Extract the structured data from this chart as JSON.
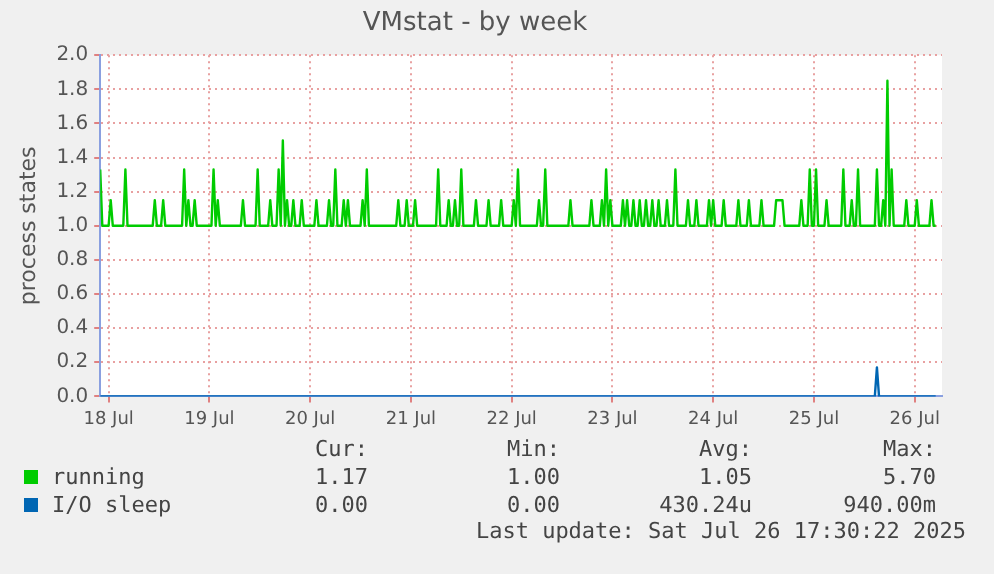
{
  "chart_data": {
    "type": "line",
    "title": "VMstat - by week",
    "ylabel": "process states",
    "xlim": [
      "2025-07-17T22:00",
      "2025-07-26T06:30"
    ],
    "xticks": [
      {
        "value": "2025-07-18",
        "label": "18 Jul"
      },
      {
        "value": "2025-07-19",
        "label": "19 Jul"
      },
      {
        "value": "2025-07-20",
        "label": "20 Jul"
      },
      {
        "value": "2025-07-21",
        "label": "21 Jul"
      },
      {
        "value": "2025-07-22",
        "label": "22 Jul"
      },
      {
        "value": "2025-07-23",
        "label": "23 Jul"
      },
      {
        "value": "2025-07-24",
        "label": "24 Jul"
      },
      {
        "value": "2025-07-25",
        "label": "25 Jul"
      },
      {
        "value": "2025-07-26",
        "label": "26 Jul"
      }
    ],
    "ylim": [
      0,
      2
    ],
    "yticks": [
      {
        "value": 0,
        "label": "0.0"
      },
      {
        "value": 0.2,
        "label": "0.2"
      },
      {
        "value": 0.4,
        "label": "0.4"
      },
      {
        "value": 0.6,
        "label": "0.6"
      },
      {
        "value": 0.8,
        "label": "0.8"
      },
      {
        "value": 1,
        "label": "1.0"
      },
      {
        "value": 1.2,
        "label": "1.2"
      },
      {
        "value": 1.4,
        "label": "1.4"
      },
      {
        "value": 1.6,
        "label": "1.6"
      },
      {
        "value": 1.8,
        "label": "1.8"
      },
      {
        "value": 2,
        "label": "2.0"
      }
    ],
    "grid": true,
    "legend": "bottom",
    "marker": "none",
    "line_style": "solid",
    "series": [
      {
        "name": "running",
        "color": "#00cc00",
        "x": [
          "2025-07-17T22:00",
          "2025-07-17T22:30",
          "2025-07-18T00:00",
          "2025-07-18T00:30",
          "2025-07-18T01:00",
          "2025-07-18T03:30",
          "2025-07-18T04:00",
          "2025-07-18T04:30",
          "2025-07-18T10:30",
          "2025-07-18T11:00",
          "2025-07-18T11:30",
          "2025-07-18T12:30",
          "2025-07-18T13:00",
          "2025-07-18T13:30",
          "2025-07-18T17:30",
          "2025-07-18T18:00",
          "2025-07-18T18:30",
          "2025-07-18T19:00",
          "2025-07-18T19:30",
          "2025-07-18T20:00",
          "2025-07-18T20:30",
          "2025-07-18T21:00",
          "2025-07-19T00:30",
          "2025-07-19T01:00",
          "2025-07-19T01:30",
          "2025-07-19T02:00",
          "2025-07-19T02:30",
          "2025-07-19T07:30",
          "2025-07-19T08:00",
          "2025-07-19T08:30",
          "2025-07-19T11:00",
          "2025-07-19T11:30",
          "2025-07-19T12:00",
          "2025-07-19T14:00",
          "2025-07-19T14:30",
          "2025-07-19T15:00",
          "2025-07-19T16:00",
          "2025-07-19T16:30",
          "2025-07-19T17:00",
          "2025-07-19T17:30",
          "2025-07-19T18:00",
          "2025-07-19T18:30",
          "2025-07-19T19:00",
          "2025-07-19T19:30",
          "2025-07-19T20:00",
          "2025-07-19T20:30",
          "2025-07-19T21:30",
          "2025-07-19T22:00",
          "2025-07-19T22:30",
          "2025-07-20T01:00",
          "2025-07-20T01:30",
          "2025-07-20T02:00",
          "2025-07-20T04:00",
          "2025-07-20T04:30",
          "2025-07-20T05:00",
          "2025-07-20T05:30",
          "2025-07-20T06:00",
          "2025-07-20T06:30",
          "2025-07-20T07:30",
          "2025-07-20T08:00",
          "2025-07-20T08:30",
          "2025-07-20T09:00",
          "2025-07-20T09:30",
          "2025-07-20T12:00",
          "2025-07-20T12:30",
          "2025-07-20T13:00",
          "2025-07-20T13:30",
          "2025-07-20T14:00",
          "2025-07-20T20:30",
          "2025-07-20T21:00",
          "2025-07-20T21:30",
          "2025-07-20T22:30",
          "2025-07-20T23:00",
          "2025-07-20T23:30",
          "2025-07-21T00:30",
          "2025-07-21T01:00",
          "2025-07-21T01:30",
          "2025-07-21T06:00",
          "2025-07-21T06:30",
          "2025-07-21T07:00",
          "2025-07-21T08:30",
          "2025-07-21T09:00",
          "2025-07-21T09:30",
          "2025-07-21T10:00",
          "2025-07-21T10:30",
          "2025-07-21T11:00",
          "2025-07-21T11:30",
          "2025-07-21T12:00",
          "2025-07-21T12:30",
          "2025-07-21T15:00",
          "2025-07-21T15:30",
          "2025-07-21T16:00",
          "2025-07-21T18:00",
          "2025-07-21T18:30",
          "2025-07-21T19:00",
          "2025-07-21T21:00",
          "2025-07-21T21:30",
          "2025-07-21T22:00",
          "2025-07-22T00:00",
          "2025-07-22T00:30",
          "2025-07-22T01:00",
          "2025-07-22T01:30",
          "2025-07-22T02:00",
          "2025-07-22T06:00",
          "2025-07-22T06:30",
          "2025-07-22T07:00",
          "2025-07-22T07:30",
          "2025-07-22T08:00",
          "2025-07-22T08:30",
          "2025-07-22T13:30",
          "2025-07-22T14:00",
          "2025-07-22T14:30",
          "2025-07-22T18:30",
          "2025-07-22T19:00",
          "2025-07-22T19:30",
          "2025-07-22T21:00",
          "2025-07-22T21:30",
          "2025-07-22T22:00",
          "2025-07-22T22:30",
          "2025-07-22T23:00",
          "2025-07-22T23:30",
          "2025-07-23T00:00",
          "2025-07-23T02:00",
          "2025-07-23T02:30",
          "2025-07-23T03:00",
          "2025-07-23T03:30",
          "2025-07-23T04:00",
          "2025-07-23T04:30",
          "2025-07-23T05:00",
          "2025-07-23T05:30",
          "2025-07-23T06:00",
          "2025-07-23T06:30",
          "2025-07-23T07:00",
          "2025-07-23T07:30",
          "2025-07-23T08:00",
          "2025-07-23T08:30",
          "2025-07-23T09:00",
          "2025-07-23T09:30",
          "2025-07-23T10:00",
          "2025-07-23T10:30",
          "2025-07-23T11:00",
          "2025-07-23T11:30",
          "2025-07-23T12:30",
          "2025-07-23T13:00",
          "2025-07-23T13:30",
          "2025-07-23T14:30",
          "2025-07-23T15:00",
          "2025-07-23T15:30",
          "2025-07-23T17:30",
          "2025-07-23T18:00",
          "2025-07-23T18:30",
          "2025-07-23T19:30",
          "2025-07-23T20:00",
          "2025-07-23T20:30",
          "2025-07-23T22:30",
          "2025-07-23T23:00",
          "2025-07-23T23:30",
          "2025-07-24T00:00",
          "2025-07-24T00:30",
          "2025-07-24T02:00",
          "2025-07-24T02:30",
          "2025-07-24T03:00",
          "2025-07-24T05:30",
          "2025-07-24T06:00",
          "2025-07-24T06:30",
          "2025-07-24T08:00",
          "2025-07-24T08:30",
          "2025-07-24T09:00",
          "2025-07-24T11:00",
          "2025-07-24T11:30",
          "2025-07-24T12:00",
          "2025-07-24T14:30",
          "2025-07-24T15:00",
          "2025-07-24T16:30",
          "2025-07-24T17:00",
          "2025-07-24T20:30",
          "2025-07-24T21:00",
          "2025-07-24T21:30",
          "2025-07-24T22:30",
          "2025-07-24T23:00",
          "2025-07-24T23:30",
          "2025-07-25T00:00",
          "2025-07-25T00:30",
          "2025-07-25T01:00",
          "2025-07-25T02:30",
          "2025-07-25T03:00",
          "2025-07-25T03:30",
          "2025-07-25T06:30",
          "2025-07-25T07:00",
          "2025-07-25T07:30",
          "2025-07-25T08:30",
          "2025-07-25T09:00",
          "2025-07-25T09:30",
          "2025-07-25T10:00",
          "2025-07-25T10:30",
          "2025-07-25T11:00",
          "2025-07-25T14:30",
          "2025-07-25T15:00",
          "2025-07-25T15:30",
          "2025-07-25T16:00",
          "2025-07-25T16:30",
          "2025-07-25T17:00",
          "2025-07-25T17:30",
          "2025-07-25T18:00",
          "2025-07-25T18:30",
          "2025-07-25T19:00",
          "2025-07-25T21:30",
          "2025-07-25T22:00",
          "2025-07-25T22:30",
          "2025-07-26T00:00",
          "2025-07-26T00:30",
          "2025-07-26T01:00",
          "2025-07-26T03:30",
          "2025-07-26T04:00",
          "2025-07-26T04:30",
          "2025-07-26T05:00"
        ],
        "values": [
          1.33,
          1,
          1,
          1.15,
          1,
          1,
          1.33,
          1,
          1,
          1.15,
          1,
          1,
          1.15,
          1,
          1,
          1.33,
          1,
          1.15,
          1,
          1,
          1.15,
          1,
          1,
          1.33,
          1,
          1.15,
          1,
          1,
          1.15,
          1,
          1,
          1.33,
          1,
          1,
          1.15,
          1,
          1,
          1.33,
          1,
          1.5,
          1,
          1.15,
          1,
          1,
          1.15,
          1,
          1,
          1.15,
          1,
          1,
          1.15,
          1,
          1,
          1.15,
          1,
          1,
          1.33,
          1,
          1,
          1.15,
          1,
          1.15,
          1,
          1,
          1.15,
          1,
          1.33,
          1,
          1,
          1.15,
          1,
          1,
          1.15,
          1,
          1,
          1.15,
          1,
          1,
          1.33,
          1,
          1,
          1.15,
          1,
          1,
          1.15,
          1,
          1,
          1.33,
          1,
          1,
          1.15,
          1,
          1,
          1.15,
          1,
          1,
          1.15,
          1,
          1,
          1.15,
          1,
          1.33,
          1,
          1,
          1.15,
          1,
          1,
          1.33,
          1,
          1,
          1.15,
          1,
          1,
          1.15,
          1,
          1,
          1.15,
          1,
          1.33,
          1,
          1.15,
          1,
          1,
          1.15,
          1,
          1.15,
          1,
          1,
          1.15,
          1,
          1,
          1.15,
          1,
          1,
          1.15,
          1,
          1,
          1.15,
          1,
          1,
          1.15,
          1,
          1,
          1.15,
          1,
          1,
          1.33,
          1,
          1,
          1.15,
          1,
          1,
          1.15,
          1,
          1,
          1.15,
          1,
          1.15,
          1,
          1,
          1.15,
          1,
          1,
          1.15,
          1,
          1,
          1.15,
          1,
          1,
          1.15,
          1,
          1,
          1.15,
          1.15,
          1,
          1,
          1.15,
          1,
          1,
          1.33,
          1,
          1,
          1.33,
          1,
          1,
          1.15,
          1,
          1,
          1.33,
          1,
          1,
          1.15,
          1,
          1,
          1.33,
          1,
          1,
          1.33,
          1,
          1,
          1.15,
          1,
          1.85,
          1,
          1.33,
          1,
          1,
          1.15,
          1,
          1,
          1.15,
          1,
          1,
          1.15,
          1,
          1
        ]
      },
      {
        "name": "I/O sleep",
        "color": "#0066b3",
        "x": [
          "2025-07-17T22:00",
          "2025-07-25T14:30",
          "2025-07-25T15:00",
          "2025-07-25T15:30",
          "2025-07-26T05:00"
        ],
        "values": [
          0,
          0,
          0.17,
          0,
          0
        ]
      }
    ],
    "annotations": [
      "Cur:",
      "Min:",
      "Avg:",
      "Max:",
      "1.17",
      "1.00",
      "1.05",
      "5.70",
      "0.00",
      "0.00",
      "430.24u",
      "940.00m",
      "Last update: Sat Jul 26 17:30:22 2025"
    ]
  }
}
